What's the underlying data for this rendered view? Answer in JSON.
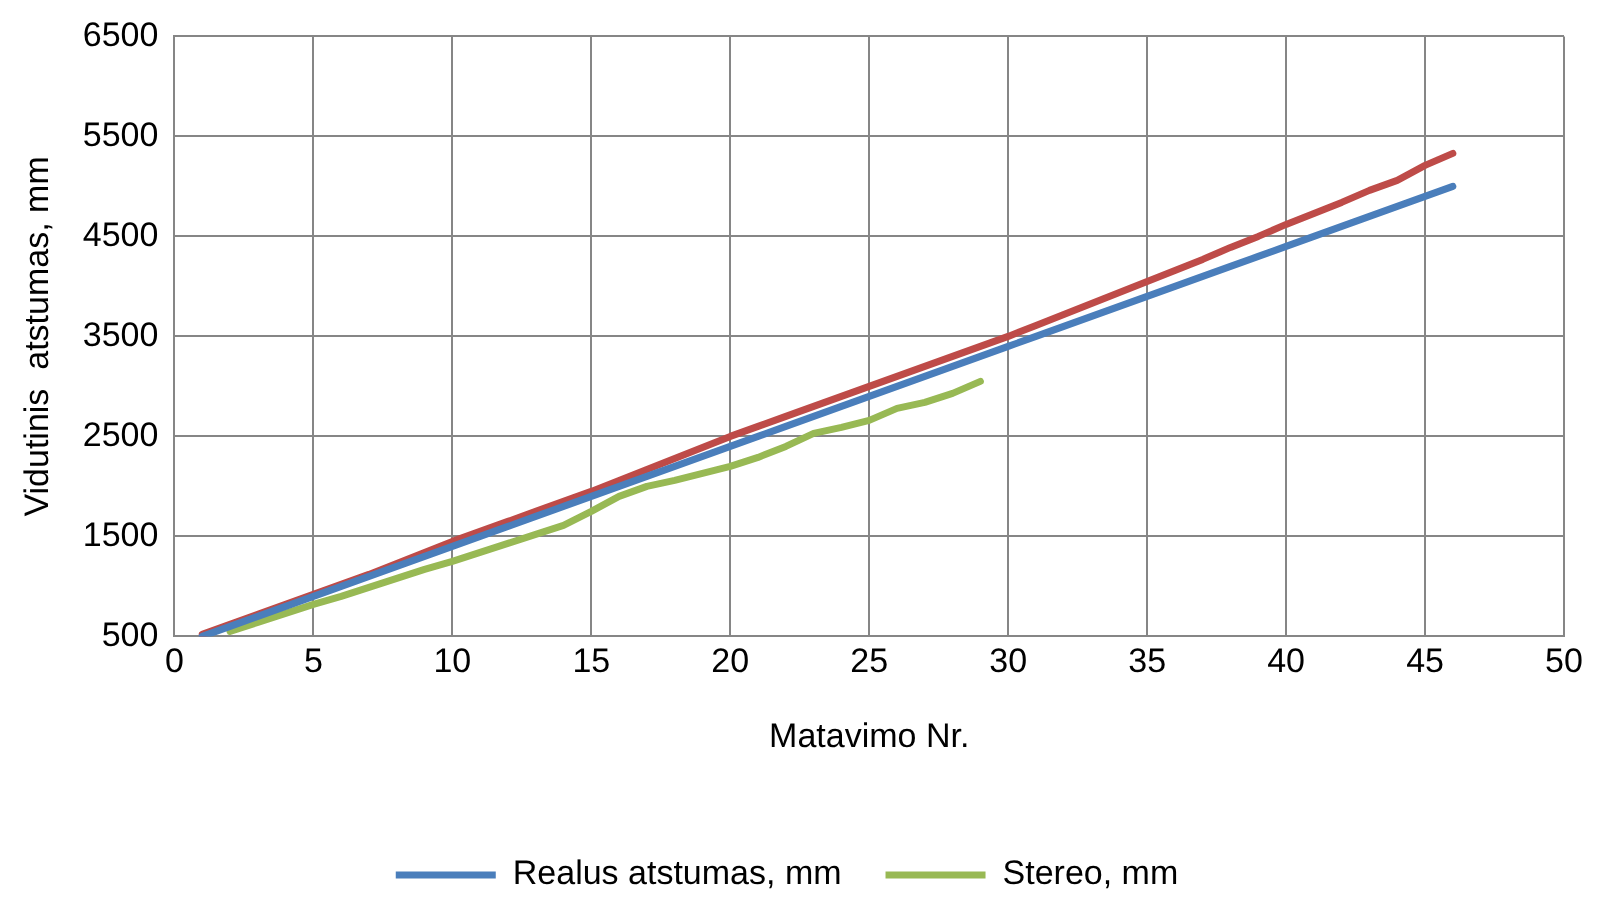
{
  "chart_data": {
    "type": "line",
    "xlabel": "Matavimo Nr.",
    "ylabel": "Vidutinis  atstumas, mm",
    "xlim": [
      0,
      50
    ],
    "xticks": [
      0,
      5,
      10,
      15,
      20,
      25,
      30,
      35,
      40,
      45,
      50
    ],
    "ylim": [
      500,
      6500
    ],
    "yticks": [
      500,
      1500,
      2500,
      3500,
      4500,
      5500,
      6500
    ],
    "grid": true,
    "legend": "bottom",
    "marker": "none",
    "line_style": "solid",
    "series": [
      {
        "name": "Realus atstumas, mm",
        "color": "#4a7ebb",
        "x": [
          1,
          2,
          3,
          4,
          5,
          6,
          7,
          8,
          9,
          10,
          11,
          12,
          13,
          14,
          15,
          16,
          17,
          18,
          19,
          20,
          21,
          22,
          23,
          24,
          25,
          26,
          27,
          28,
          29,
          30,
          31,
          32,
          33,
          34,
          35,
          36,
          37,
          38,
          39,
          40,
          41,
          42,
          43,
          44,
          45,
          46
        ],
        "values": [
          500,
          600,
          700,
          800,
          900,
          1000,
          1100,
          1200,
          1300,
          1400,
          1500,
          1600,
          1700,
          1800,
          1900,
          2000,
          2100,
          2200,
          2300,
          2400,
          2500,
          2600,
          2700,
          2800,
          2900,
          3000,
          3100,
          3200,
          3300,
          3400,
          3500,
          3600,
          3700,
          3800,
          3900,
          4000,
          4100,
          4200,
          4300,
          4400,
          4500,
          4600,
          4700,
          4800,
          4900,
          5000
        ]
      },
      {
        "color": "#be4b48",
        "x": [
          1,
          2,
          3,
          4,
          5,
          6,
          7,
          8,
          9,
          10,
          11,
          12,
          13,
          14,
          15,
          16,
          17,
          18,
          19,
          20,
          21,
          22,
          23,
          24,
          25,
          26,
          27,
          28,
          29,
          30,
          31,
          32,
          33,
          34,
          35,
          36,
          37,
          38,
          39,
          40,
          41,
          42,
          43,
          44,
          45,
          46
        ],
        "values": [
          520,
          620,
          720,
          820,
          920,
          1020,
          1120,
          1230,
          1340,
          1450,
          1550,
          1650,
          1750,
          1850,
          1950,
          2060,
          2170,
          2280,
          2390,
          2500,
          2600,
          2700,
          2800,
          2900,
          3000,
          3100,
          3200,
          3300,
          3400,
          3500,
          3610,
          3720,
          3830,
          3940,
          4050,
          4160,
          4270,
          4390,
          4500,
          4620,
          4730,
          4840,
          4960,
          5060,
          5210,
          5330
        ]
      },
      {
        "name": "Stereo, mm",
        "color": "#98b954",
        "x": [
          2,
          3,
          4,
          5,
          6,
          7,
          8,
          9,
          10,
          11,
          12,
          13,
          14,
          15,
          16,
          17,
          18,
          19,
          20,
          21,
          22,
          23,
          24,
          25,
          26,
          27,
          28,
          29
        ],
        "values": [
          550,
          640,
          730,
          820,
          900,
          990,
          1080,
          1170,
          1250,
          1340,
          1430,
          1520,
          1610,
          1750,
          1900,
          2000,
          2060,
          2130,
          2200,
          2290,
          2400,
          2530,
          2590,
          2660,
          2780,
          2840,
          2930,
          3050
        ]
      }
    ]
  }
}
